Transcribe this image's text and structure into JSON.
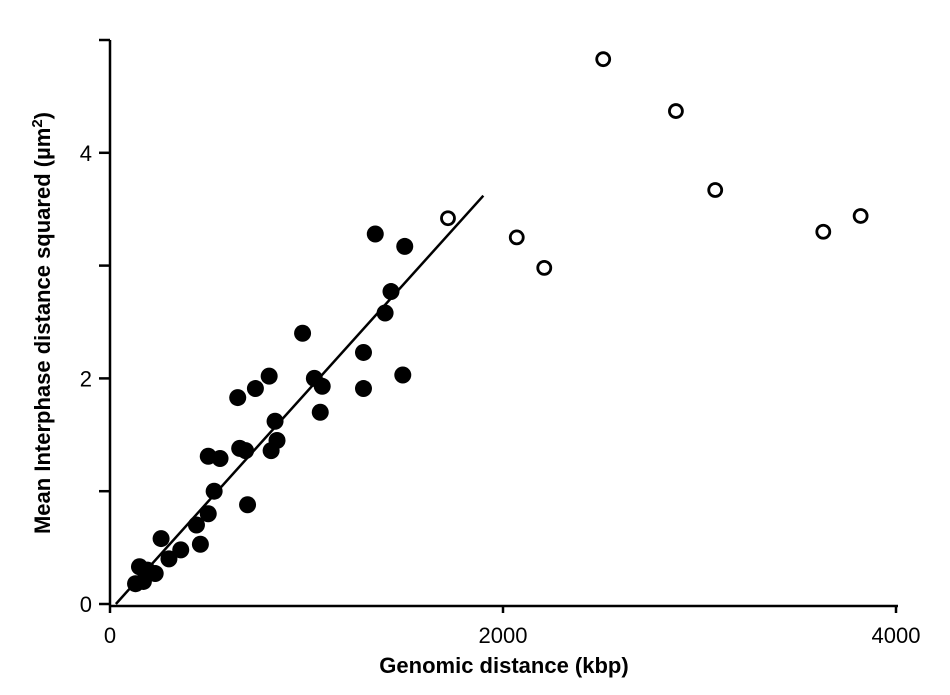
{
  "chart_data": {
    "type": "scatter",
    "title": "",
    "xlabel": "Genomic distance (kbp)",
    "ylabel": "Mean Interphase distance squared (µm",
    "ylabel_superscript": "2",
    "ylabel_close": ")",
    "xlim": [
      0,
      4000
    ],
    "ylim": [
      0,
      5
    ],
    "x_ticks": [
      {
        "value": 0,
        "label": "0"
      },
      {
        "value": 2000,
        "label": "2000"
      },
      {
        "value": 4000,
        "label": "4000"
      }
    ],
    "y_ticks": [
      {
        "value": 0,
        "label": "0"
      },
      {
        "value": 2,
        "label": "2"
      },
      {
        "value": 4,
        "label": "4"
      }
    ],
    "y_minor_ticks": [
      1,
      3,
      5
    ],
    "grid": false,
    "series": [
      {
        "marker": "filled-circle",
        "color": "#000000",
        "points": [
          {
            "x": 130,
            "y": 0.18
          },
          {
            "x": 150,
            "y": 0.33
          },
          {
            "x": 170,
            "y": 0.2
          },
          {
            "x": 190,
            "y": 0.3
          },
          {
            "x": 230,
            "y": 0.27
          },
          {
            "x": 260,
            "y": 0.58
          },
          {
            "x": 300,
            "y": 0.4
          },
          {
            "x": 360,
            "y": 0.48
          },
          {
            "x": 440,
            "y": 0.7
          },
          {
            "x": 460,
            "y": 0.53
          },
          {
            "x": 500,
            "y": 0.8
          },
          {
            "x": 500,
            "y": 1.31
          },
          {
            "x": 530,
            "y": 1.0
          },
          {
            "x": 560,
            "y": 1.29
          },
          {
            "x": 650,
            "y": 1.83
          },
          {
            "x": 660,
            "y": 1.38
          },
          {
            "x": 690,
            "y": 1.36
          },
          {
            "x": 700,
            "y": 0.88
          },
          {
            "x": 740,
            "y": 1.91
          },
          {
            "x": 810,
            "y": 2.02
          },
          {
            "x": 820,
            "y": 1.36
          },
          {
            "x": 840,
            "y": 1.62
          },
          {
            "x": 850,
            "y": 1.45
          },
          {
            "x": 980,
            "y": 2.4
          },
          {
            "x": 1040,
            "y": 2.0
          },
          {
            "x": 1070,
            "y": 1.7
          },
          {
            "x": 1080,
            "y": 1.93
          },
          {
            "x": 1290,
            "y": 2.23
          },
          {
            "x": 1290,
            "y": 1.91
          },
          {
            "x": 1350,
            "y": 3.28
          },
          {
            "x": 1400,
            "y": 2.58
          },
          {
            "x": 1430,
            "y": 2.77
          },
          {
            "x": 1490,
            "y": 2.03
          },
          {
            "x": 1500,
            "y": 3.17
          }
        ]
      },
      {
        "marker": "open-circle",
        "color": "#000000",
        "points": [
          {
            "x": 1720,
            "y": 3.42
          },
          {
            "x": 2070,
            "y": 3.25
          },
          {
            "x": 2210,
            "y": 2.98
          },
          {
            "x": 2510,
            "y": 4.83
          },
          {
            "x": 2880,
            "y": 4.37
          },
          {
            "x": 3080,
            "y": 3.67
          },
          {
            "x": 3630,
            "y": 3.3
          },
          {
            "x": 3820,
            "y": 3.44
          }
        ]
      }
    ],
    "fit_line": {
      "x": [
        30,
        1900
      ],
      "y": [
        0,
        3.62
      ]
    }
  }
}
